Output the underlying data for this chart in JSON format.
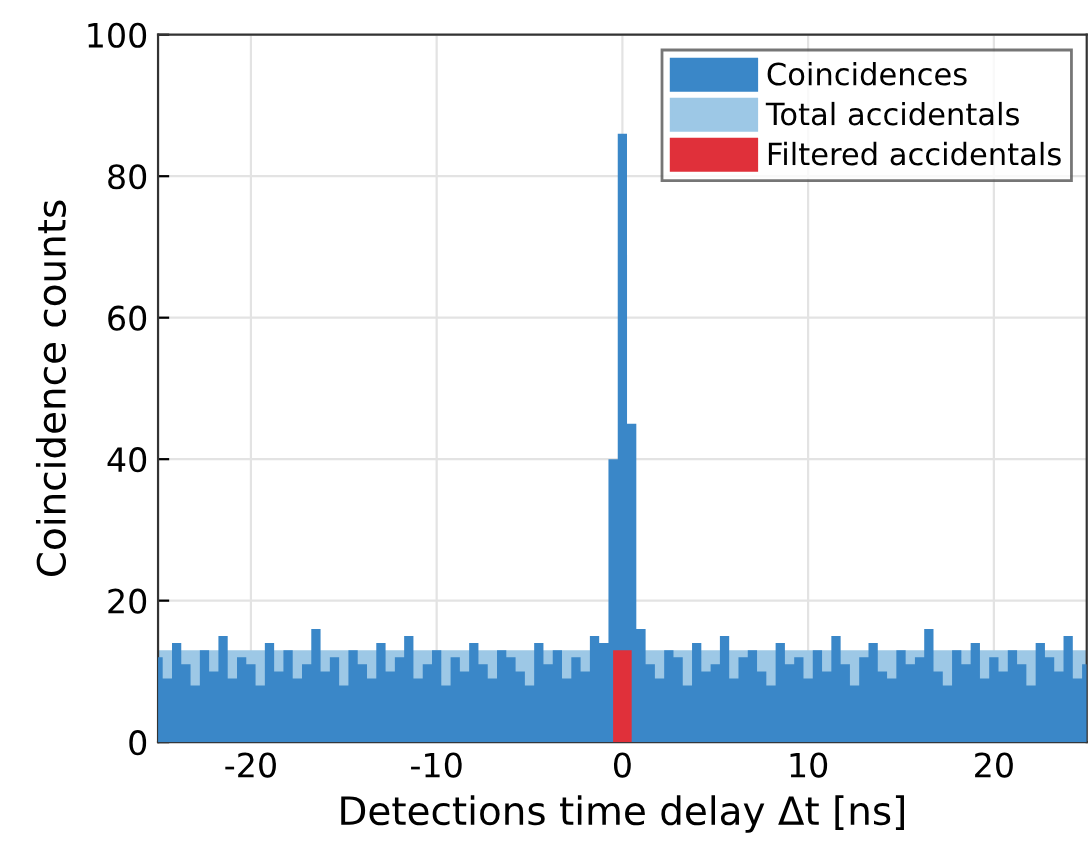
{
  "chart_data": {
    "type": "area",
    "xlabel": "Detections time delay Δt [ns]",
    "ylabel": "Coincidence counts",
    "xlim": [
      -25,
      25
    ],
    "ylim": [
      0,
      100
    ],
    "xticks": [
      -20,
      -10,
      0,
      10,
      20
    ],
    "yticks": [
      0,
      20,
      40,
      60,
      80,
      100
    ],
    "grid": true,
    "legend": "top right",
    "series": [
      {
        "name": "Coincidences",
        "color": "#3a87c8",
        "x": [
          -25,
          -24.5,
          -24,
          -23.5,
          -23,
          -22.5,
          -22,
          -21.5,
          -21,
          -20.5,
          -20,
          -19.5,
          -19,
          -18.5,
          -18,
          -17.5,
          -17,
          -16.5,
          -16,
          -15.5,
          -15,
          -14.5,
          -14,
          -13.5,
          -13,
          -12.5,
          -12,
          -11.5,
          -11,
          -10.5,
          -10,
          -9.5,
          -9,
          -8.5,
          -8,
          -7.5,
          -7,
          -6.5,
          -6,
          -5.5,
          -5,
          -4.5,
          -4,
          -3.5,
          -3,
          -2.5,
          -2,
          -1.5,
          -1,
          -0.5,
          0,
          0.5,
          1,
          1.5,
          2,
          2.5,
          3,
          3.5,
          4,
          4.5,
          5,
          5.5,
          6,
          6.5,
          7,
          7.5,
          8,
          8.5,
          9,
          9.5,
          10,
          10.5,
          11,
          11.5,
          12,
          12.5,
          13,
          13.5,
          14,
          14.5,
          15,
          15.5,
          16,
          16.5,
          17,
          17.5,
          18,
          18.5,
          19,
          19.5,
          20,
          20.5,
          21,
          21.5,
          22,
          22.5,
          23,
          23.5,
          24,
          24.5,
          25
        ],
        "values": [
          12,
          9,
          14,
          11,
          8,
          13,
          10,
          15,
          9,
          12,
          11,
          8,
          14,
          10,
          13,
          9,
          11,
          16,
          10,
          12,
          8,
          13,
          11,
          9,
          14,
          10,
          12,
          15,
          9,
          11,
          13,
          8,
          12,
          10,
          14,
          11,
          9,
          13,
          12,
          10,
          8,
          14,
          11,
          13,
          9,
          12,
          10,
          15,
          14,
          40,
          86,
          45,
          16,
          11,
          9,
          13,
          12,
          8,
          14,
          10,
          11,
          15,
          9,
          12,
          13,
          10,
          8,
          14,
          11,
          12,
          9,
          13,
          10,
          15,
          11,
          8,
          12,
          14,
          10,
          9,
          13,
          11,
          12,
          16,
          10,
          8,
          13,
          11,
          14,
          9,
          12,
          10,
          13,
          11,
          8,
          14,
          12,
          10,
          15,
          9,
          11
        ]
      },
      {
        "name": "Total accidentals",
        "type": "histogram",
        "color": "#9dc8e6",
        "bins": [
          -25,
          25
        ],
        "values": [
          13
        ]
      },
      {
        "name": "Filtered accidentals",
        "type": "histogram",
        "color": "#e0303a",
        "bins": [
          -0.5,
          0.5
        ],
        "values": [
          13
        ]
      }
    ]
  }
}
